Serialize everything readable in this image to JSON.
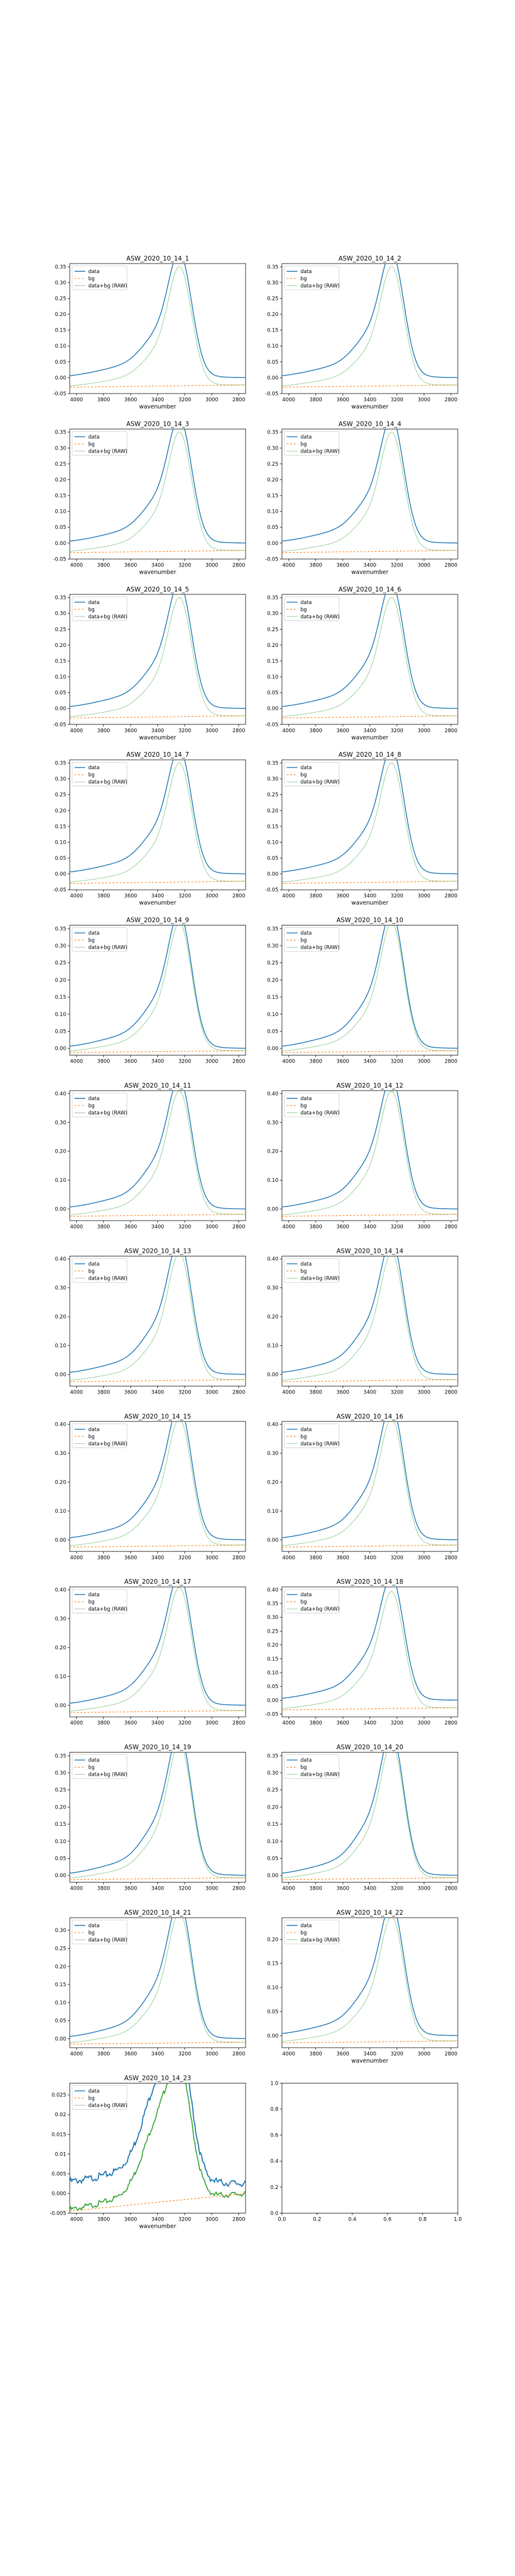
{
  "legend_labels": [
    "data",
    "bg",
    "data+bg (RAW)"
  ],
  "colors": {
    "data": "#1f77b4",
    "bg": "#ff7f0e",
    "raw": "#2ca02c",
    "axis": "#000000"
  },
  "chart_data": [
    {
      "type": "line",
      "title": "ASW_2020_10_14_1",
      "xlabel": "wavenumber",
      "xlim": [
        4050,
        2750
      ],
      "ylim": [
        -0.05,
        0.36
      ],
      "yticks": [
        -0.05,
        0,
        0.05,
        0.1,
        0.15,
        0.2,
        0.25,
        0.3,
        0.35
      ],
      "xticks": [
        4000,
        3800,
        3600,
        3400,
        3200,
        3000,
        2800
      ],
      "legend": "top-left",
      "peak": 0.335,
      "bg_start": -0.03,
      "bg_end": -0.023,
      "shoulder": 0.16
    },
    {
      "type": "line",
      "title": "ASW_2020_10_14_2",
      "xlabel": "wavenumber",
      "xlim": [
        4050,
        2750
      ],
      "ylim": [
        -0.05,
        0.36
      ],
      "yticks": [
        -0.05,
        0,
        0.05,
        0.1,
        0.15,
        0.2,
        0.25,
        0.3,
        0.35
      ],
      "xticks": [
        4000,
        3800,
        3600,
        3400,
        3200,
        3000,
        2800
      ],
      "legend": "top-left",
      "peak": 0.335,
      "bg_start": -0.03,
      "bg_end": -0.023,
      "shoulder": 0.16
    },
    {
      "type": "line",
      "title": "ASW_2020_10_14_3",
      "xlabel": "wavenumber",
      "xlim": [
        4050,
        2750
      ],
      "ylim": [
        -0.05,
        0.36
      ],
      "yticks": [
        -0.05,
        0,
        0.05,
        0.1,
        0.15,
        0.2,
        0.25,
        0.3,
        0.35
      ],
      "xticks": [
        4000,
        3800,
        3600,
        3400,
        3200,
        3000,
        2800
      ],
      "legend": "top-left",
      "peak": 0.335,
      "bg_start": -0.03,
      "bg_end": -0.023,
      "shoulder": 0.16
    },
    {
      "type": "line",
      "title": "ASW_2020_10_14_4",
      "xlabel": "wavenumber",
      "xlim": [
        4050,
        2750
      ],
      "ylim": [
        -0.05,
        0.36
      ],
      "yticks": [
        -0.05,
        0,
        0.05,
        0.1,
        0.15,
        0.2,
        0.25,
        0.3,
        0.35
      ],
      "xticks": [
        4000,
        3800,
        3600,
        3400,
        3200,
        3000,
        2800
      ],
      "legend": "top-left",
      "peak": 0.335,
      "bg_start": -0.03,
      "bg_end": -0.023,
      "shoulder": 0.16
    },
    {
      "type": "line",
      "title": "ASW_2020_10_14_5",
      "xlabel": "wavenumber",
      "xlim": [
        4050,
        2750
      ],
      "ylim": [
        -0.05,
        0.36
      ],
      "yticks": [
        -0.05,
        0,
        0.05,
        0.1,
        0.15,
        0.2,
        0.25,
        0.3,
        0.35
      ],
      "xticks": [
        4000,
        3800,
        3600,
        3400,
        3200,
        3000,
        2800
      ],
      "legend": "top-left",
      "peak": 0.335,
      "bg_start": -0.03,
      "bg_end": -0.023,
      "shoulder": 0.16
    },
    {
      "type": "line",
      "title": "ASW_2020_10_14_6",
      "xlabel": "wavenumber",
      "xlim": [
        4050,
        2750
      ],
      "ylim": [
        -0.05,
        0.36
      ],
      "yticks": [
        -0.05,
        0,
        0.05,
        0.1,
        0.15,
        0.2,
        0.25,
        0.3,
        0.35
      ],
      "xticks": [
        4000,
        3800,
        3600,
        3400,
        3200,
        3000,
        2800
      ],
      "legend": "top-left",
      "peak": 0.335,
      "bg_start": -0.03,
      "bg_end": -0.023,
      "shoulder": 0.16
    },
    {
      "type": "line",
      "title": "ASW_2020_10_14_7",
      "xlabel": "wavenumber",
      "xlim": [
        4050,
        2750
      ],
      "ylim": [
        -0.05,
        0.36
      ],
      "yticks": [
        -0.05,
        0,
        0.05,
        0.1,
        0.15,
        0.2,
        0.25,
        0.3,
        0.35
      ],
      "xticks": [
        4000,
        3800,
        3600,
        3400,
        3200,
        3000,
        2800
      ],
      "legend": "top-left",
      "peak": 0.335,
      "bg_start": -0.03,
      "bg_end": -0.023,
      "shoulder": 0.16
    },
    {
      "type": "line",
      "title": "ASW_2020_10_14_8",
      "xlabel": "wavenumber",
      "xlim": [
        4050,
        2750
      ],
      "ylim": [
        -0.05,
        0.36
      ],
      "yticks": [
        -0.05,
        0,
        0.05,
        0.1,
        0.15,
        0.2,
        0.25,
        0.3,
        0.35
      ],
      "xticks": [
        4000,
        3800,
        3600,
        3400,
        3200,
        3000,
        2800
      ],
      "legend": "top-left",
      "peak": 0.335,
      "bg_start": -0.03,
      "bg_end": -0.023,
      "shoulder": 0.16
    },
    {
      "type": "line",
      "title": "ASW_2020_10_14_9",
      "xlabel": "",
      "xlim": [
        4050,
        2750
      ],
      "ylim": [
        -0.02,
        0.36
      ],
      "yticks": [
        0,
        0.05,
        0.1,
        0.15,
        0.2,
        0.25,
        0.3,
        0.35
      ],
      "xticks": [
        4000,
        3800,
        3600,
        3400,
        3200,
        3000,
        2800
      ],
      "legend": "top-left",
      "peak": 0.335,
      "bg_start": -0.012,
      "bg_end": -0.007,
      "shoulder": 0.16
    },
    {
      "type": "line",
      "title": "ASW_2020_10_14_10",
      "xlabel": "",
      "xlim": [
        4050,
        2750
      ],
      "ylim": [
        -0.02,
        0.36
      ],
      "yticks": [
        0,
        0.05,
        0.1,
        0.15,
        0.2,
        0.25,
        0.3,
        0.35
      ],
      "xticks": [
        4000,
        3800,
        3600,
        3400,
        3200,
        3000,
        2800
      ],
      "legend": "top-left",
      "peak": 0.335,
      "bg_start": -0.012,
      "bg_end": -0.007,
      "shoulder": 0.16
    },
    {
      "type": "line",
      "title": "ASW_2020_10_14_11",
      "xlabel": "",
      "xlim": [
        4050,
        2750
      ],
      "ylim": [
        -0.04,
        0.41
      ],
      "yticks": [
        0,
        0.1,
        0.2,
        0.3,
        0.4
      ],
      "xticks": [
        4000,
        3800,
        3600,
        3400,
        3200,
        3000,
        2800
      ],
      "legend": "top-left",
      "peak": 0.38,
      "bg_start": -0.025,
      "bg_end": -0.018,
      "shoulder": 0.17
    },
    {
      "type": "line",
      "title": "ASW_2020_10_14_12",
      "xlabel": "",
      "xlim": [
        4050,
        2750
      ],
      "ylim": [
        -0.04,
        0.41
      ],
      "yticks": [
        0,
        0.1,
        0.2,
        0.3,
        0.4
      ],
      "xticks": [
        4000,
        3800,
        3600,
        3400,
        3200,
        3000,
        2800
      ],
      "legend": "top-left",
      "peak": 0.38,
      "bg_start": -0.025,
      "bg_end": -0.018,
      "shoulder": 0.17
    },
    {
      "type": "line",
      "title": "ASW_2020_10_14_13",
      "xlabel": "",
      "xlim": [
        4050,
        2750
      ],
      "ylim": [
        -0.04,
        0.41
      ],
      "yticks": [
        0,
        0.1,
        0.2,
        0.3,
        0.4
      ],
      "xticks": [
        4000,
        3800,
        3600,
        3400,
        3200,
        3000,
        2800
      ],
      "legend": "top-left",
      "peak": 0.39,
      "bg_start": -0.025,
      "bg_end": -0.018,
      "shoulder": 0.17
    },
    {
      "type": "line",
      "title": "ASW_2020_10_14_14",
      "xlabel": "",
      "xlim": [
        4050,
        2750
      ],
      "ylim": [
        -0.04,
        0.41
      ],
      "yticks": [
        0,
        0.1,
        0.2,
        0.3,
        0.4
      ],
      "xticks": [
        4000,
        3800,
        3600,
        3400,
        3200,
        3000,
        2800
      ],
      "legend": "top-left",
      "peak": 0.39,
      "bg_start": -0.025,
      "bg_end": -0.018,
      "shoulder": 0.17
    },
    {
      "type": "line",
      "title": "ASW_2020_10_14_15",
      "xlabel": "",
      "xlim": [
        4050,
        2750
      ],
      "ylim": [
        -0.04,
        0.41
      ],
      "yticks": [
        0,
        0.1,
        0.2,
        0.3,
        0.4
      ],
      "xticks": [
        4000,
        3800,
        3600,
        3400,
        3200,
        3000,
        2800
      ],
      "legend": "top-left",
      "peak": 0.39,
      "bg_start": -0.025,
      "bg_end": -0.018,
      "shoulder": 0.17
    },
    {
      "type": "line",
      "title": "ASW_2020_10_14_16",
      "xlabel": "",
      "xlim": [
        4050,
        2750
      ],
      "ylim": [
        -0.04,
        0.41
      ],
      "yticks": [
        0,
        0.1,
        0.2,
        0.3,
        0.4
      ],
      "xticks": [
        4000,
        3800,
        3600,
        3400,
        3200,
        3000,
        2800
      ],
      "legend": "top-left",
      "peak": 0.39,
      "bg_start": -0.025,
      "bg_end": -0.018,
      "shoulder": 0.17
    },
    {
      "type": "line",
      "title": "ASW_2020_10_14_17",
      "xlabel": "",
      "xlim": [
        4050,
        2750
      ],
      "ylim": [
        -0.04,
        0.41
      ],
      "yticks": [
        0,
        0.1,
        0.2,
        0.3,
        0.4
      ],
      "xticks": [
        4000,
        3800,
        3600,
        3400,
        3200,
        3000,
        2800
      ],
      "legend": "top-left",
      "peak": 0.38,
      "bg_start": -0.025,
      "bg_end": -0.018,
      "shoulder": 0.17
    },
    {
      "type": "line",
      "title": "ASW_2020_10_14_18",
      "xlabel": "",
      "xlim": [
        4050,
        2750
      ],
      "ylim": [
        -0.06,
        0.41
      ],
      "yticks": [
        -0.05,
        0,
        0.05,
        0.1,
        0.15,
        0.2,
        0.25,
        0.3,
        0.35,
        0.4
      ],
      "xticks": [
        4000,
        3800,
        3600,
        3400,
        3200,
        3000,
        2800
      ],
      "legend": "top-left",
      "peak": 0.375,
      "bg_start": -0.035,
      "bg_end": -0.027,
      "shoulder": 0.17
    },
    {
      "type": "line",
      "title": "ASW_2020_10_14_19",
      "xlabel": "",
      "xlim": [
        4050,
        2750
      ],
      "ylim": [
        -0.02,
        0.36
      ],
      "yticks": [
        0,
        0.05,
        0.1,
        0.15,
        0.2,
        0.25,
        0.3,
        0.35
      ],
      "xticks": [
        4000,
        3800,
        3600,
        3400,
        3200,
        3000,
        2800
      ],
      "legend": "top-left",
      "peak": 0.35,
      "bg_start": -0.012,
      "bg_end": -0.007,
      "shoulder": 0.17
    },
    {
      "type": "line",
      "title": "ASW_2020_10_14_20",
      "xlabel": "",
      "xlim": [
        4050,
        2750
      ],
      "ylim": [
        -0.02,
        0.36
      ],
      "yticks": [
        0,
        0.05,
        0.1,
        0.15,
        0.2,
        0.25,
        0.3,
        0.35
      ],
      "xticks": [
        4000,
        3800,
        3600,
        3400,
        3200,
        3000,
        2800
      ],
      "legend": "top-left",
      "peak": 0.35,
      "bg_start": -0.012,
      "bg_end": -0.007,
      "shoulder": 0.17
    },
    {
      "type": "line",
      "title": "ASW_2020_10_14_21",
      "xlabel": "",
      "xlim": [
        4050,
        2750
      ],
      "ylim": [
        -0.025,
        0.335
      ],
      "yticks": [
        0,
        0.05,
        0.1,
        0.15,
        0.2,
        0.25,
        0.3
      ],
      "xticks": [
        4000,
        3800,
        3600,
        3400,
        3200,
        3000,
        2800
      ],
      "legend": "top-left",
      "peak": 0.32,
      "bg_start": -0.015,
      "bg_end": -0.01,
      "shoulder": 0.17
    },
    {
      "type": "line",
      "title": "ASW_2020_10_14_22",
      "xlabel": "wavenumber",
      "xlim": [
        4050,
        2750
      ],
      "ylim": [
        -0.025,
        0.245
      ],
      "yticks": [
        0,
        0.05,
        0.1,
        0.15,
        0.2
      ],
      "xticks": [
        4000,
        3800,
        3600,
        3400,
        3200,
        3000,
        2800
      ],
      "legend": "top-left",
      "peak": 0.23,
      "bg_start": -0.015,
      "bg_end": -0.011,
      "shoulder": 0.17
    },
    {
      "type": "line",
      "title": "ASW_2020_10_14_23",
      "xlabel": "wavenumber",
      "xlim": [
        4050,
        2750
      ],
      "ylim": [
        -0.005,
        0.028
      ],
      "yticks": [
        -0.005,
        0,
        0.005,
        0.01,
        0.015,
        0.02,
        0.025
      ],
      "xticks": [
        4000,
        3800,
        3600,
        3400,
        3200,
        3000,
        2800
      ],
      "legend": "top-left",
      "peak": 0.0265,
      "bg_start": -0.0045,
      "bg_end": 0.0,
      "shoulder": 0.45,
      "noisy": true,
      "base": 0.0025
    },
    {
      "type": "line",
      "title": "",
      "xlabel": "",
      "xlim": [
        0,
        1
      ],
      "ylim": [
        0,
        1
      ],
      "xticks": [
        0,
        0.2,
        0.4,
        0.6,
        0.8,
        1.0
      ],
      "yticks": [
        0,
        0.2,
        0.4,
        0.6,
        0.8,
        1.0
      ],
      "empty": true
    }
  ]
}
